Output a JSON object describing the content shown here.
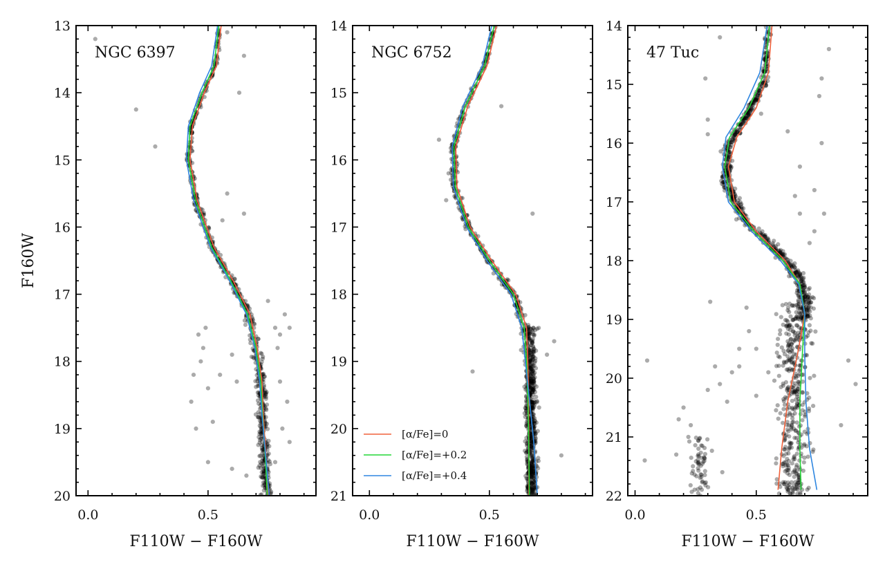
{
  "chart_data": [
    {
      "type": "scatter",
      "title": "NGC 6397",
      "xlabel": "F110W − F160W",
      "ylabel": "F160W",
      "xlim": [
        -0.05,
        0.95
      ],
      "ylim": [
        20,
        13
      ],
      "xticks": [
        0.0,
        0.5
      ],
      "xtick_labels": [
        "0.0",
        "0.5"
      ],
      "yticks": [
        13,
        14,
        15,
        16,
        17,
        18,
        19,
        20
      ],
      "ytick_labels": [
        "13",
        "14",
        "15",
        "16",
        "17",
        "18",
        "19",
        "20"
      ],
      "ridge": [
        [
          0.55,
          13.0
        ],
        [
          0.53,
          13.6
        ],
        [
          0.48,
          14.0
        ],
        [
          0.43,
          14.5
        ],
        [
          0.42,
          15.0
        ],
        [
          0.45,
          15.6
        ],
        [
          0.52,
          16.3
        ],
        [
          0.6,
          16.8
        ],
        [
          0.67,
          17.3
        ],
        [
          0.7,
          17.8
        ],
        [
          0.72,
          18.3
        ],
        [
          0.725,
          18.8
        ],
        [
          0.735,
          19.3
        ],
        [
          0.745,
          20.0
        ]
      ],
      "ridge_width": 0.02,
      "outliers": [
        [
          0.03,
          13.2
        ],
        [
          0.2,
          14.25
        ],
        [
          0.28,
          14.8
        ],
        [
          0.63,
          14.0
        ],
        [
          0.65,
          13.45
        ],
        [
          0.58,
          13.1
        ],
        [
          0.65,
          15.8
        ],
        [
          0.58,
          15.5
        ],
        [
          0.56,
          15.9
        ],
        [
          0.78,
          17.5
        ],
        [
          0.8,
          17.6
        ],
        [
          0.75,
          17.1
        ],
        [
          0.82,
          17.3
        ],
        [
          0.84,
          17.5
        ],
        [
          0.46,
          17.6
        ],
        [
          0.49,
          17.5
        ],
        [
          0.47,
          18.0
        ],
        [
          0.44,
          18.2
        ],
        [
          0.43,
          18.6
        ],
        [
          0.52,
          18.9
        ],
        [
          0.45,
          19.0
        ],
        [
          0.48,
          17.8
        ],
        [
          0.5,
          18.4
        ],
        [
          0.8,
          18.3
        ],
        [
          0.83,
          18.6
        ],
        [
          0.81,
          19.0
        ],
        [
          0.84,
          19.2
        ],
        [
          0.6,
          19.6
        ],
        [
          0.78,
          19.5
        ],
        [
          0.79,
          17.8
        ],
        [
          0.6,
          17.9
        ],
        [
          0.62,
          18.3
        ],
        [
          0.55,
          18.2
        ],
        [
          0.66,
          19.7
        ],
        [
          0.5,
          19.5
        ]
      ],
      "cloud": [],
      "legend": null,
      "series": [
        {
          "name": "[α/Fe]=0",
          "color": "#f0603a",
          "points": [
            [
              0.555,
              13.0
            ],
            [
              0.535,
              13.6
            ],
            [
              0.485,
              14.0
            ],
            [
              0.435,
              14.5
            ],
            [
              0.425,
              15.0
            ],
            [
              0.455,
              15.6
            ],
            [
              0.525,
              16.3
            ],
            [
              0.605,
              16.8
            ],
            [
              0.675,
              17.3
            ],
            [
              0.705,
              17.8
            ],
            [
              0.725,
              18.3
            ],
            [
              0.73,
              18.8
            ],
            [
              0.74,
              19.3
            ],
            [
              0.75,
              20.0
            ]
          ]
        },
        {
          "name": "[α/Fe]=+0.2",
          "color": "#22d636",
          "points": [
            [
              0.545,
              13.0
            ],
            [
              0.525,
              13.6
            ],
            [
              0.475,
              14.0
            ],
            [
              0.425,
              14.5
            ],
            [
              0.418,
              15.0
            ],
            [
              0.448,
              15.6
            ],
            [
              0.515,
              16.3
            ],
            [
              0.595,
              16.8
            ],
            [
              0.665,
              17.3
            ],
            [
              0.7,
              17.8
            ],
            [
              0.72,
              18.3
            ],
            [
              0.727,
              18.8
            ],
            [
              0.737,
              19.3
            ],
            [
              0.747,
              20.0
            ]
          ]
        },
        {
          "name": "[α/Fe]=+0.4",
          "color": "#2e86e0",
          "points": [
            [
              0.54,
              13.0
            ],
            [
              0.515,
              13.6
            ],
            [
              0.465,
              14.0
            ],
            [
              0.418,
              14.5
            ],
            [
              0.41,
              15.0
            ],
            [
              0.44,
              15.6
            ],
            [
              0.51,
              16.3
            ],
            [
              0.59,
              16.8
            ],
            [
              0.66,
              17.3
            ],
            [
              0.695,
              17.8
            ],
            [
              0.715,
              18.3
            ],
            [
              0.725,
              18.8
            ],
            [
              0.738,
              19.3
            ],
            [
              0.755,
              20.0
            ]
          ]
        }
      ]
    },
    {
      "type": "scatter",
      "title": "NGC 6752",
      "xlabel": "F110W − F160W",
      "ylabel": "",
      "xlim": [
        -0.07,
        0.93
      ],
      "ylim": [
        21,
        14
      ],
      "xticks": [
        0.0,
        0.5
      ],
      "xtick_labels": [
        "0.0",
        "0.5"
      ],
      "yticks": [
        14,
        15,
        16,
        17,
        18,
        19,
        20,
        21
      ],
      "ytick_labels": [
        "14",
        "15",
        "16",
        "17",
        "18",
        "19",
        "20",
        "21"
      ],
      "ridge": [
        [
          0.52,
          14.0
        ],
        [
          0.48,
          14.6
        ],
        [
          0.4,
          15.2
        ],
        [
          0.35,
          15.8
        ],
        [
          0.355,
          16.4
        ],
        [
          0.41,
          17.0
        ],
        [
          0.5,
          17.5
        ],
        [
          0.6,
          18.0
        ],
        [
          0.65,
          18.5
        ],
        [
          0.66,
          19.0
        ],
        [
          0.67,
          19.5
        ],
        [
          0.675,
          20.2
        ],
        [
          0.68,
          21.0
        ]
      ],
      "ridge_width": 0.02,
      "outliers": [
        [
          0.29,
          15.7
        ],
        [
          0.33,
          16.2
        ],
        [
          0.32,
          16.6
        ],
        [
          0.55,
          15.2
        ],
        [
          0.68,
          16.8
        ],
        [
          0.74,
          18.9
        ],
        [
          0.8,
          20.4
        ],
        [
          0.77,
          18.7
        ],
        [
          0.43,
          19.15
        ]
      ],
      "cloud": [
        {
          "x0": 0.64,
          "x1": 0.71,
          "y0": 18.5,
          "y1": 21.0,
          "n": 320
        }
      ],
      "legend": {
        "position": "lower-left"
      },
      "series": [
        {
          "name": "[α/Fe]=0",
          "color": "#f0603a",
          "points": [
            [
              0.53,
              14.0
            ],
            [
              0.49,
              14.6
            ],
            [
              0.41,
              15.2
            ],
            [
              0.36,
              15.8
            ],
            [
              0.365,
              16.4
            ],
            [
              0.42,
              17.0
            ],
            [
              0.51,
              17.5
            ],
            [
              0.61,
              18.0
            ],
            [
              0.655,
              18.5
            ],
            [
              0.66,
              19.0
            ],
            [
              0.663,
              19.5
            ],
            [
              0.665,
              20.2
            ],
            [
              0.665,
              21.0
            ]
          ]
        },
        {
          "name": "[α/Fe]=+0.2",
          "color": "#22d636",
          "points": [
            [
              0.52,
              14.0
            ],
            [
              0.48,
              14.6
            ],
            [
              0.4,
              15.2
            ],
            [
              0.352,
              15.8
            ],
            [
              0.358,
              16.4
            ],
            [
              0.412,
              17.0
            ],
            [
              0.5,
              17.5
            ],
            [
              0.6,
              18.0
            ],
            [
              0.645,
              18.5
            ],
            [
              0.655,
              19.0
            ],
            [
              0.66,
              19.5
            ],
            [
              0.664,
              20.2
            ],
            [
              0.667,
              21.0
            ]
          ]
        },
        {
          "name": "[α/Fe]=+0.4",
          "color": "#2e86e0",
          "points": [
            [
              0.51,
              14.0
            ],
            [
              0.47,
              14.6
            ],
            [
              0.39,
              15.2
            ],
            [
              0.345,
              15.8
            ],
            [
              0.35,
              16.4
            ],
            [
              0.405,
              17.0
            ],
            [
              0.49,
              17.5
            ],
            [
              0.59,
              18.0
            ],
            [
              0.635,
              18.5
            ],
            [
              0.65,
              19.0
            ],
            [
              0.665,
              19.5
            ],
            [
              0.685,
              20.2
            ],
            [
              0.7,
              21.0
            ]
          ]
        }
      ]
    },
    {
      "type": "scatter",
      "title": "47 Tuc",
      "xlabel": "F110W − F160W",
      "ylabel": "",
      "xlim": [
        -0.03,
        0.96
      ],
      "ylim": [
        22,
        14
      ],
      "xticks": [
        0.0,
        0.5
      ],
      "xtick_labels": [
        "0.0",
        "0.5"
      ],
      "yticks": [
        14,
        15,
        16,
        17,
        18,
        19,
        20,
        21,
        22
      ],
      "ytick_labels": [
        "14",
        "15",
        "16",
        "17",
        "18",
        "19",
        "20",
        "21",
        "22"
      ],
      "ridge": [
        [
          0.55,
          14.0
        ],
        [
          0.53,
          15.0
        ],
        [
          0.45,
          15.6
        ],
        [
          0.38,
          16.1
        ],
        [
          0.38,
          16.7
        ],
        [
          0.45,
          17.3
        ],
        [
          0.58,
          17.8
        ],
        [
          0.66,
          18.2
        ],
        [
          0.7,
          18.6
        ],
        [
          0.7,
          19.0
        ]
      ],
      "ridge_width": 0.025,
      "outliers": [
        [
          0.05,
          19.7
        ],
        [
          0.04,
          21.4
        ],
        [
          0.18,
          20.7
        ],
        [
          0.2,
          20.5
        ],
        [
          0.22,
          21.0
        ],
        [
          0.17,
          21.3
        ],
        [
          0.23,
          20.8
        ],
        [
          0.3,
          20.2
        ],
        [
          0.35,
          20.1
        ],
        [
          0.33,
          19.8
        ],
        [
          0.38,
          20.4
        ],
        [
          0.4,
          19.9
        ],
        [
          0.43,
          19.5
        ],
        [
          0.47,
          19.2
        ],
        [
          0.5,
          19.5
        ],
        [
          0.46,
          18.8
        ],
        [
          0.43,
          19.8
        ],
        [
          0.5,
          20.3
        ],
        [
          0.55,
          19.9
        ],
        [
          0.3,
          15.6
        ],
        [
          0.3,
          15.85
        ],
        [
          0.29,
          14.9
        ],
        [
          0.35,
          14.2
        ],
        [
          0.8,
          14.4
        ],
        [
          0.77,
          14.9
        ],
        [
          0.76,
          15.2
        ],
        [
          0.77,
          16.0
        ],
        [
          0.68,
          16.4
        ],
        [
          0.74,
          16.8
        ],
        [
          0.78,
          17.2
        ],
        [
          0.74,
          17.5
        ],
        [
          0.72,
          17.7
        ],
        [
          0.68,
          17.2
        ],
        [
          0.41,
          17.1
        ],
        [
          0.52,
          15.5
        ],
        [
          0.63,
          15.8
        ],
        [
          0.66,
          16.9
        ],
        [
          0.85,
          20.8
        ],
        [
          0.88,
          19.7
        ],
        [
          0.91,
          20.1
        ],
        [
          0.36,
          21.6
        ],
        [
          0.31,
          18.7
        ]
      ],
      "cloud": [
        {
          "x0": 0.56,
          "x1": 0.76,
          "y0": 18.7,
          "y1": 22.0,
          "n": 420
        },
        {
          "x0": 0.2,
          "x1": 0.33,
          "y0": 21.0,
          "y1": 22.0,
          "n": 60
        }
      ],
      "legend": null,
      "series": [
        {
          "name": "[α/Fe]=0",
          "color": "#f0603a",
          "points": [
            [
              0.565,
              14.0
            ],
            [
              0.55,
              14.8
            ],
            [
              0.5,
              15.4
            ],
            [
              0.42,
              15.9
            ],
            [
              0.385,
              16.4
            ],
            [
              0.41,
              17.0
            ],
            [
              0.5,
              17.5
            ],
            [
              0.62,
              18.0
            ],
            [
              0.68,
              18.4
            ],
            [
              0.7,
              18.9
            ],
            [
              0.67,
              19.6
            ],
            [
              0.63,
              20.4
            ],
            [
              0.605,
              21.2
            ],
            [
              0.59,
              21.9
            ]
          ]
        },
        {
          "name": "[α/Fe]=+0.2",
          "color": "#22d636",
          "points": [
            [
              0.555,
              14.0
            ],
            [
              0.535,
              14.8
            ],
            [
              0.47,
              15.4
            ],
            [
              0.39,
              15.9
            ],
            [
              0.37,
              16.4
            ],
            [
              0.395,
              17.0
            ],
            [
              0.49,
              17.5
            ],
            [
              0.61,
              18.0
            ],
            [
              0.68,
              18.4
            ],
            [
              0.7,
              18.9
            ],
            [
              0.69,
              19.6
            ],
            [
              0.68,
              20.4
            ],
            [
              0.68,
              21.2
            ],
            [
              0.685,
              21.9
            ]
          ]
        },
        {
          "name": "[α/Fe]=+0.4",
          "color": "#2e86e0",
          "points": [
            [
              0.545,
              14.0
            ],
            [
              0.515,
              14.8
            ],
            [
              0.45,
              15.4
            ],
            [
              0.375,
              15.9
            ],
            [
              0.36,
              16.4
            ],
            [
              0.385,
              17.0
            ],
            [
              0.48,
              17.5
            ],
            [
              0.6,
              18.0
            ],
            [
              0.675,
              18.4
            ],
            [
              0.7,
              18.9
            ],
            [
              0.7,
              19.6
            ],
            [
              0.705,
              20.4
            ],
            [
              0.72,
              21.2
            ],
            [
              0.75,
              21.9
            ]
          ]
        }
      ]
    }
  ]
}
